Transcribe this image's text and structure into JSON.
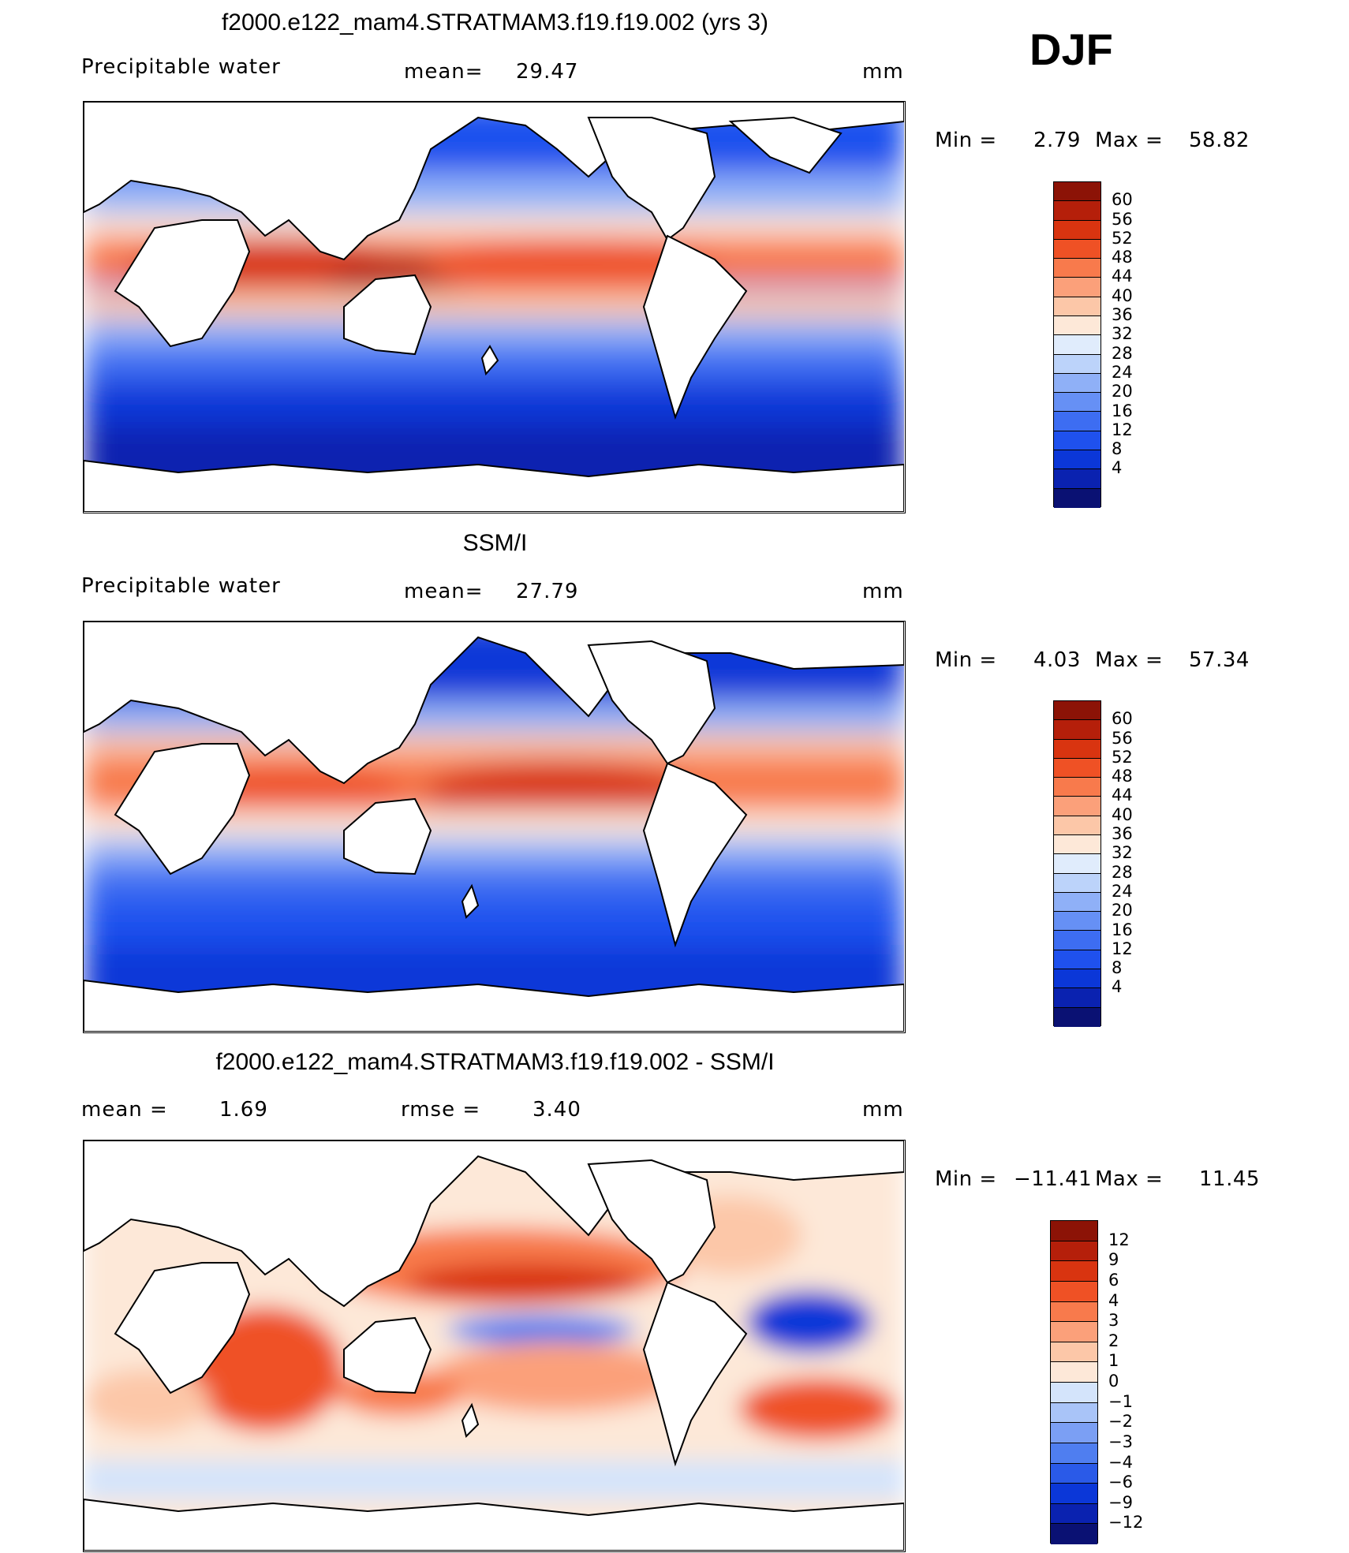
{
  "season": "DJF",
  "palette_sequential": [
    "#0a1173",
    "#0a22b0",
    "#0b37d8",
    "#1f51ee",
    "#3d6df2",
    "#6690f5",
    "#8fb0f7",
    "#bcd3fa",
    "#e0ecfc",
    "#fde8d8",
    "#fcc7a8",
    "#fba07a",
    "#f87a4c",
    "#ef5125",
    "#d93410",
    "#b51f0a",
    "#8c1306"
  ],
  "palette_diff": [
    "#0a1173",
    "#0a22b0",
    "#0b37d8",
    "#2a5ae8",
    "#4f7ef0",
    "#7b9ff4",
    "#a9c4f8",
    "#d4e4fb",
    "#fde8d8",
    "#fcc7a8",
    "#fba07a",
    "#f87a4c",
    "#ef5125",
    "#d93410",
    "#b51f0a",
    "#8c1306"
  ],
  "panels": [
    {
      "title": "f2000.e122_mam4.STRATMAM3.f19.f19.002 (yrs 3)",
      "left_label": "Precipitable water",
      "center_label": "mean=",
      "center_value": "29.47",
      "right_label": "mm",
      "min_label": "Min =",
      "min_value": "2.79",
      "max_label": "Max =",
      "max_value": "58.82",
      "levels": [
        "60",
        "56",
        "52",
        "48",
        "44",
        "40",
        "36",
        "32",
        "28",
        "24",
        "20",
        "16",
        "12",
        "8",
        "4"
      ]
    },
    {
      "title": "SSM/I",
      "left_label": "Precipitable water",
      "center_label": "mean=",
      "center_value": "27.79",
      "right_label": "mm",
      "min_label": "Min =",
      "min_value": "4.03",
      "max_label": "Max =",
      "max_value": "57.34",
      "levels": [
        "60",
        "56",
        "52",
        "48",
        "44",
        "40",
        "36",
        "32",
        "28",
        "24",
        "20",
        "16",
        "12",
        "8",
        "4"
      ]
    },
    {
      "title": "f2000.e122_mam4.STRATMAM3.f19.f19.002 - SSM/I",
      "left_label": "mean =",
      "left_value": "1.69",
      "center_label": "rmse =",
      "center_value": "3.40",
      "right_label": "mm",
      "min_label": "Min =",
      "min_value": "−11.41",
      "max_label": "Max =",
      "max_value": "11.45",
      "levels": [
        "12",
        "9",
        "6",
        "4",
        "3",
        "2",
        "1",
        "0",
        "−1",
        "−2",
        "−3",
        "−4",
        "−6",
        "−9",
        "−12"
      ]
    }
  ]
}
